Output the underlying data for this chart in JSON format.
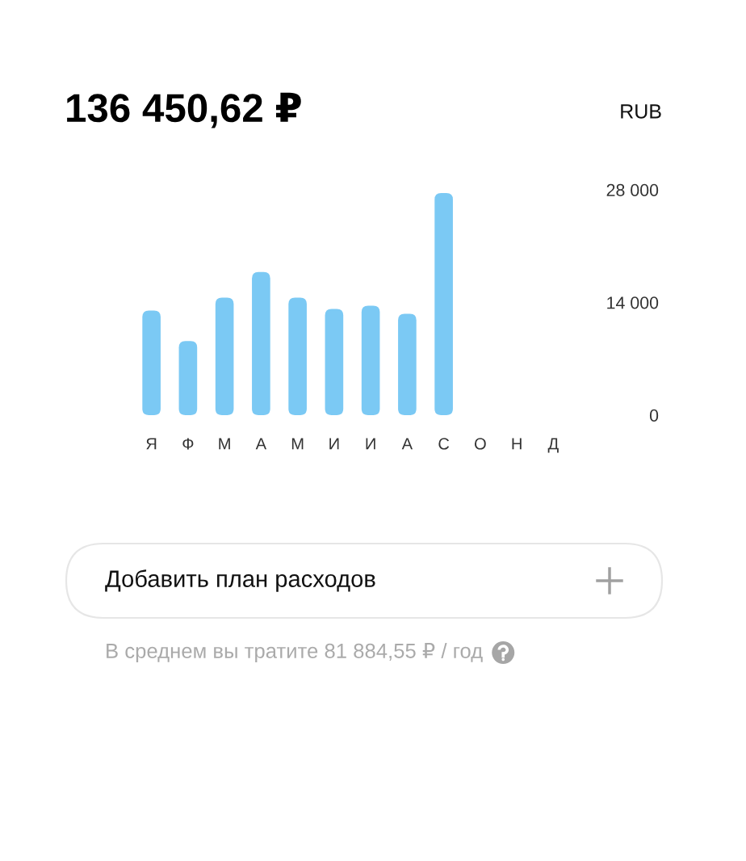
{
  "chart_data": {
    "type": "bar",
    "title": "136 450,62 ₽",
    "categories": [
      "Я",
      "Ф",
      "М",
      "А",
      "М",
      "И",
      "И",
      "А",
      "С",
      "О",
      "Н",
      "Д"
    ],
    "values": [
      13000,
      9200,
      14600,
      17800,
      14600,
      13200,
      13600,
      12600,
      27600,
      null,
      null,
      null
    ],
    "color": "#7bc9f4",
    "ylim": [
      0,
      28000
    ],
    "yticks": [
      0,
      {
        "value": 14000,
        "label": "14 000"
      },
      {
        "value": 28000,
        "label": "28 000"
      }
    ],
    "annotations": [
      "RUB",
      "Добавить план расходов",
      "В среднем вы тратите 81 884,55 ₽ / год"
    ]
  }
}
